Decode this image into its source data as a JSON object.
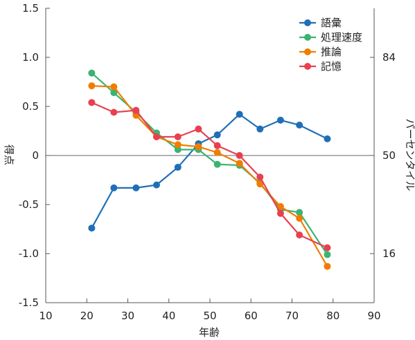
{
  "chart_data": {
    "type": "line",
    "xlabel": "年齢",
    "ylabel": "得点",
    "y2label": "パーセンタイル",
    "xlim": [
      10,
      90
    ],
    "ylim": [
      -1.5,
      1.5
    ],
    "xticks": [
      "10",
      "20",
      "30",
      "40",
      "50",
      "60",
      "70",
      "80",
      "90"
    ],
    "yticks": [
      "1.5",
      "1.0",
      "0.5",
      "0",
      "-0.5",
      "-1.0",
      "-1.5"
    ],
    "y2ticks": [
      {
        "label": "84",
        "value": 1.0
      },
      {
        "label": "50",
        "value": 0.0
      },
      {
        "label": "16",
        "value": -1.0
      }
    ],
    "zero_line": true,
    "grid": false,
    "legend_position": "top-right",
    "series": [
      {
        "name": "語彙",
        "color": "#1f6fb8",
        "x": [
          21.2,
          26.6,
          32.0,
          37.0,
          42.2,
          47.2,
          51.8,
          57.2,
          62.2,
          67.2,
          71.8,
          78.6
        ],
        "y": [
          -0.74,
          -0.33,
          -0.33,
          -0.3,
          -0.12,
          0.12,
          0.21,
          0.42,
          0.27,
          0.36,
          0.31,
          0.17
        ]
      },
      {
        "name": "処理速度",
        "color": "#3cb371",
        "x": [
          21.2,
          26.6,
          32.0,
          37.0,
          42.2,
          47.2,
          51.8,
          57.2,
          62.2,
          67.2,
          71.8,
          78.6
        ],
        "y": [
          0.84,
          0.64,
          0.44,
          0.23,
          0.06,
          0.06,
          -0.09,
          -0.1,
          -0.28,
          -0.55,
          -0.58,
          -1.01
        ]
      },
      {
        "name": "推論",
        "color": "#f07d00",
        "x": [
          21.2,
          26.6,
          32.0,
          37.0,
          42.2,
          47.2,
          51.8,
          57.2,
          62.2,
          67.2,
          71.8,
          78.6
        ],
        "y": [
          0.71,
          0.7,
          0.41,
          0.19,
          0.11,
          0.09,
          0.03,
          -0.08,
          -0.29,
          -0.52,
          -0.64,
          -1.13
        ]
      },
      {
        "name": "記憶",
        "color": "#e84050",
        "x": [
          21.2,
          26.6,
          32.0,
          37.0,
          42.2,
          47.2,
          51.8,
          57.2,
          62.2,
          67.2,
          71.8,
          78.6
        ],
        "y": [
          0.54,
          0.44,
          0.46,
          0.19,
          0.19,
          0.27,
          0.1,
          0.0,
          -0.22,
          -0.59,
          -0.81,
          -0.94
        ]
      }
    ]
  }
}
